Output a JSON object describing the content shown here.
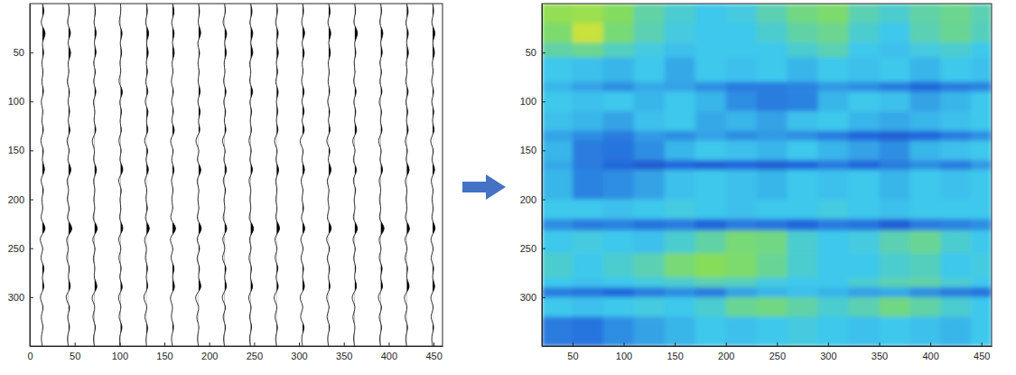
{
  "chart_data": [
    {
      "type": "wiggle",
      "xlim": [
        0,
        460
      ],
      "ylim": [
        0,
        350
      ],
      "xticks": [
        0,
        50,
        100,
        150,
        200,
        250,
        300,
        350,
        400,
        450
      ],
      "yticks": [
        50,
        100,
        150,
        200,
        250,
        300
      ],
      "t": [
        0,
        10,
        20,
        30,
        40,
        50,
        60,
        70,
        80,
        90,
        100,
        110,
        120,
        130,
        140,
        150,
        160,
        170,
        180,
        190,
        200,
        210,
        220,
        230,
        240,
        250,
        260,
        270,
        280,
        290,
        300,
        310,
        320,
        330,
        340,
        350
      ],
      "color": "#000000",
      "traces": [
        {
          "x": 14,
          "values": [
            0,
            3,
            -4,
            6,
            -2,
            3,
            -2,
            2,
            -2,
            3,
            -3,
            2,
            -2,
            3,
            -4,
            3,
            -2,
            5,
            -4,
            3,
            -2,
            2,
            -4,
            7,
            -6,
            3,
            -4,
            4,
            -2,
            4,
            -5,
            3,
            -3,
            2,
            -2,
            0
          ]
        },
        {
          "x": 43,
          "values": [
            0,
            2,
            -3,
            5,
            -3,
            5,
            -2,
            2,
            -3,
            3,
            -2,
            3,
            -2,
            4,
            -4,
            3,
            -3,
            6,
            -4,
            2,
            -3,
            3,
            -4,
            8,
            -5,
            2,
            -4,
            3,
            -2,
            5,
            -6,
            4,
            -3,
            3,
            -2,
            0
          ]
        },
        {
          "x": 72,
          "values": [
            0,
            2,
            -2,
            4,
            -2,
            4,
            -3,
            3,
            -3,
            4,
            -3,
            2,
            -2,
            4,
            -5,
            2,
            -3,
            5,
            -3,
            2,
            -2,
            2,
            -4,
            7,
            -5,
            3,
            -3,
            2,
            -2,
            6,
            -6,
            3,
            -4,
            3,
            -2,
            0
          ]
        },
        {
          "x": 101,
          "values": [
            0,
            1,
            -3,
            4,
            -2,
            3,
            -2,
            2,
            -4,
            5,
            -3,
            3,
            -2,
            3,
            -4,
            3,
            -3,
            6,
            -5,
            3,
            -2,
            2,
            -3,
            6,
            -5,
            3,
            -4,
            3,
            -3,
            5,
            -5,
            3,
            -4,
            4,
            -2,
            0
          ]
        },
        {
          "x": 130,
          "values": [
            0,
            2,
            -3,
            5,
            -2,
            4,
            -2,
            3,
            -3,
            4,
            -4,
            4,
            -2,
            4,
            -5,
            4,
            -3,
            5,
            -4,
            2,
            -2,
            3,
            -4,
            7,
            -5,
            2,
            -3,
            3,
            -2,
            4,
            -6,
            3,
            -4,
            3,
            -1,
            0
          ]
        },
        {
          "x": 159,
          "values": [
            0,
            3,
            -3,
            4,
            -2,
            4,
            -2,
            2,
            -3,
            3,
            -3,
            3,
            -3,
            5,
            -5,
            3,
            -3,
            4,
            -3,
            2,
            -2,
            2,
            -5,
            8,
            -6,
            3,
            -4,
            4,
            -2,
            5,
            -5,
            2,
            -3,
            3,
            -2,
            0
          ]
        },
        {
          "x": 188,
          "values": [
            0,
            2,
            -2,
            5,
            -3,
            3,
            -2,
            2,
            -2,
            4,
            -3,
            4,
            -2,
            4,
            -6,
            3,
            -4,
            6,
            -4,
            2,
            -2,
            2,
            -4,
            7,
            -5,
            4,
            -4,
            3,
            -2,
            6,
            -7,
            3,
            -4,
            2,
            -2,
            0
          ]
        },
        {
          "x": 217,
          "values": [
            0,
            2,
            -4,
            5,
            -2,
            4,
            -2,
            2,
            -3,
            4,
            -3,
            3,
            -2,
            4,
            -5,
            3,
            -3,
            5,
            -4,
            3,
            -2,
            2,
            -4,
            6,
            -5,
            3,
            -5,
            4,
            -2,
            5,
            -6,
            4,
            -4,
            3,
            -2,
            0
          ]
        },
        {
          "x": 246,
          "values": [
            0,
            3,
            -3,
            5,
            -2,
            5,
            -3,
            2,
            -3,
            5,
            -3,
            3,
            -2,
            3,
            -4,
            3,
            -3,
            5,
            -4,
            2,
            -2,
            2,
            -4,
            7,
            -4,
            3,
            -4,
            3,
            -2,
            5,
            -5,
            3,
            -3,
            3,
            -2,
            0
          ]
        },
        {
          "x": 275,
          "values": [
            0,
            2,
            -3,
            4,
            -2,
            4,
            -2,
            3,
            -3,
            4,
            -2,
            3,
            -2,
            4,
            -5,
            3,
            -3,
            5,
            -3,
            2,
            -2,
            2,
            -3,
            7,
            -5,
            3,
            -4,
            4,
            -3,
            5,
            -6,
            3,
            -4,
            3,
            -2,
            0
          ]
        },
        {
          "x": 304,
          "values": [
            0,
            2,
            -3,
            5,
            -3,
            4,
            -2,
            2,
            -3,
            4,
            -3,
            4,
            -3,
            5,
            -6,
            3,
            -3,
            5,
            -4,
            2,
            -2,
            3,
            -4,
            6,
            -5,
            3,
            -4,
            3,
            -2,
            5,
            -6,
            3,
            -5,
            4,
            -2,
            0
          ]
        },
        {
          "x": 333,
          "values": [
            0,
            3,
            -3,
            5,
            -2,
            4,
            -2,
            2,
            -2,
            3,
            -3,
            3,
            -2,
            4,
            -5,
            4,
            -3,
            6,
            -4,
            2,
            -2,
            2,
            -4,
            7,
            -6,
            4,
            -4,
            3,
            -2,
            4,
            -5,
            3,
            -4,
            3,
            -2,
            0
          ]
        },
        {
          "x": 362,
          "values": [
            0,
            2,
            -3,
            6,
            -2,
            3,
            -2,
            2,
            -3,
            4,
            -3,
            3,
            -2,
            5,
            -5,
            3,
            -4,
            5,
            -4,
            3,
            -2,
            2,
            -4,
            7,
            -5,
            3,
            -3,
            3,
            -2,
            5,
            -6,
            3,
            -4,
            2,
            -2,
            0
          ]
        },
        {
          "x": 391,
          "values": [
            0,
            2,
            -3,
            5,
            -2,
            4,
            -3,
            3,
            -3,
            4,
            -4,
            3,
            -2,
            4,
            -5,
            3,
            -3,
            5,
            -4,
            2,
            -3,
            2,
            -4,
            8,
            -5,
            3,
            -4,
            4,
            -2,
            5,
            -6,
            4,
            -4,
            3,
            -2,
            0
          ]
        },
        {
          "x": 420,
          "values": [
            0,
            3,
            -3,
            4,
            -2,
            4,
            -2,
            2,
            -3,
            4,
            -3,
            3,
            -2,
            4,
            -4,
            3,
            -3,
            6,
            -4,
            2,
            -2,
            2,
            -4,
            7,
            -5,
            3,
            -4,
            3,
            -2,
            6,
            -6,
            3,
            -4,
            3,
            -2,
            0
          ]
        },
        {
          "x": 449,
          "values": [
            0,
            2,
            -3,
            5,
            -2,
            4,
            -2,
            2,
            -3,
            3,
            -3,
            3,
            -2,
            4,
            -5,
            3,
            -3,
            5,
            -4,
            2,
            -2,
            2,
            -3,
            6,
            -5,
            3,
            -4,
            3,
            -2,
            5,
            -5,
            3,
            -4,
            3,
            -2,
            0
          ]
        }
      ]
    },
    {
      "type": "heatmap",
      "xlim": [
        20,
        460
      ],
      "ylim": [
        0,
        350
      ],
      "xticks": [
        50,
        100,
        150,
        200,
        250,
        300,
        350,
        400,
        450
      ],
      "yticks": [
        50,
        100,
        150,
        200,
        250,
        300
      ],
      "clim": [
        0,
        1
      ],
      "x_edges": [
        20,
        50,
        80,
        110,
        140,
        170,
        200,
        230,
        260,
        290,
        320,
        350,
        380,
        410,
        440,
        460
      ],
      "y_edges": [
        0,
        20,
        40,
        55,
        80,
        90,
        110,
        130,
        140,
        160,
        170,
        200,
        220,
        232,
        255,
        280,
        290,
        300,
        320,
        350
      ],
      "cells": [
        [
          0.78,
          0.8,
          0.74,
          0.62,
          0.55,
          0.5,
          0.52,
          0.6,
          0.68,
          0.72,
          0.6,
          0.55,
          0.62,
          0.66,
          0.6
        ],
        [
          0.72,
          0.9,
          0.7,
          0.6,
          0.52,
          0.5,
          0.5,
          0.55,
          0.62,
          0.66,
          0.55,
          0.5,
          0.6,
          0.65,
          0.58
        ],
        [
          0.62,
          0.66,
          0.58,
          0.52,
          0.48,
          0.5,
          0.5,
          0.5,
          0.55,
          0.6,
          0.5,
          0.48,
          0.52,
          0.55,
          0.5
        ],
        [
          0.5,
          0.48,
          0.45,
          0.5,
          0.42,
          0.5,
          0.48,
          0.5,
          0.45,
          0.5,
          0.48,
          0.5,
          0.45,
          0.5,
          0.48
        ],
        [
          0.45,
          0.4,
          0.35,
          0.42,
          0.4,
          0.35,
          0.3,
          0.3,
          0.32,
          0.38,
          0.35,
          0.3,
          0.25,
          0.3,
          0.32
        ],
        [
          0.5,
          0.48,
          0.5,
          0.45,
          0.5,
          0.45,
          0.35,
          0.3,
          0.32,
          0.45,
          0.5,
          0.48,
          0.4,
          0.45,
          0.5
        ],
        [
          0.48,
          0.45,
          0.4,
          0.48,
          0.5,
          0.42,
          0.45,
          0.4,
          0.48,
          0.5,
          0.45,
          0.42,
          0.45,
          0.48,
          0.5
        ],
        [
          0.4,
          0.35,
          0.3,
          0.38,
          0.35,
          0.4,
          0.35,
          0.38,
          0.35,
          0.3,
          0.25,
          0.22,
          0.25,
          0.3,
          0.35
        ],
        [
          0.45,
          0.3,
          0.28,
          0.35,
          0.45,
          0.5,
          0.48,
          0.45,
          0.5,
          0.45,
          0.4,
          0.35,
          0.45,
          0.48,
          0.5
        ],
        [
          0.42,
          0.3,
          0.25,
          0.2,
          0.25,
          0.22,
          0.25,
          0.22,
          0.25,
          0.3,
          0.25,
          0.3,
          0.35,
          0.3,
          0.38
        ],
        [
          0.45,
          0.32,
          0.35,
          0.4,
          0.48,
          0.5,
          0.48,
          0.45,
          0.5,
          0.48,
          0.5,
          0.45,
          0.5,
          0.48,
          0.5
        ],
        [
          0.5,
          0.5,
          0.48,
          0.5,
          0.52,
          0.5,
          0.48,
          0.5,
          0.5,
          0.52,
          0.5,
          0.48,
          0.5,
          0.5,
          0.5
        ],
        [
          0.35,
          0.3,
          0.32,
          0.28,
          0.3,
          0.25,
          0.3,
          0.28,
          0.25,
          0.3,
          0.28,
          0.22,
          0.3,
          0.32,
          0.35
        ],
        [
          0.5,
          0.52,
          0.5,
          0.48,
          0.55,
          0.62,
          0.7,
          0.68,
          0.55,
          0.5,
          0.52,
          0.6,
          0.65,
          0.55,
          0.5
        ],
        [
          0.55,
          0.5,
          0.55,
          0.6,
          0.7,
          0.75,
          0.72,
          0.65,
          0.55,
          0.5,
          0.5,
          0.55,
          0.58,
          0.5,
          0.52
        ],
        [
          0.5,
          0.48,
          0.5,
          0.52,
          0.55,
          0.6,
          0.58,
          0.52,
          0.5,
          0.5,
          0.55,
          0.6,
          0.62,
          0.55,
          0.5
        ],
        [
          0.3,
          0.28,
          0.25,
          0.3,
          0.35,
          0.3,
          0.4,
          0.45,
          0.48,
          0.45,
          0.4,
          0.42,
          0.35,
          0.3,
          0.28
        ],
        [
          0.5,
          0.48,
          0.5,
          0.52,
          0.5,
          0.55,
          0.65,
          0.68,
          0.62,
          0.55,
          0.6,
          0.68,
          0.62,
          0.55,
          0.5
        ],
        [
          0.3,
          0.28,
          0.35,
          0.4,
          0.45,
          0.5,
          0.48,
          0.5,
          0.52,
          0.5,
          0.48,
          0.5,
          0.48,
          0.45,
          0.5
        ]
      ]
    }
  ]
}
